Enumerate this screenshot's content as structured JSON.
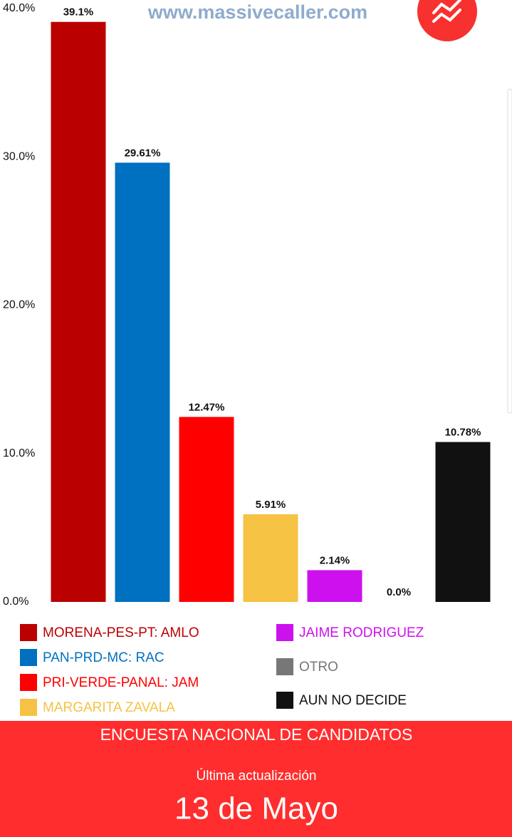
{
  "chart_data": {
    "type": "bar",
    "categories": [
      "MORENA-PES-PT: AMLO",
      "PAN-PRD-MC: RAC",
      "PRI-VERDE-PANAL: JAM",
      "MARGARITA ZAVALA",
      "JAIME RODRIGUEZ",
      "OTRO",
      "AUN NO DECIDE"
    ],
    "values": [
      39.1,
      29.61,
      12.47,
      5.91,
      2.14,
      0,
      10.78
    ],
    "value_labels": [
      "39.1%",
      "29.61%",
      "12.47%",
      "5.91%",
      "2.14%",
      "0.0%",
      "10.78%"
    ],
    "colors": [
      "#bb0000",
      "#0070c0",
      "#ff0000",
      "#f6c244",
      "#cc11ee",
      "#777777",
      "#111111"
    ],
    "ylim": [
      0,
      40
    ],
    "yticks": [
      {
        "value": 0,
        "label": "0.0%"
      },
      {
        "value": 10,
        "label": "10.0%"
      },
      {
        "value": 20,
        "label": "20.0%"
      },
      {
        "value": 30,
        "label": "30.0%"
      },
      {
        "value": 40,
        "label": "40.0%"
      }
    ]
  },
  "watermark": "www.massivecaller.com",
  "footer": {
    "title": "ENCUESTA NACIONAL DE CANDIDATOS",
    "subtitle": "Última actualización",
    "date": "13 de Mayo"
  }
}
